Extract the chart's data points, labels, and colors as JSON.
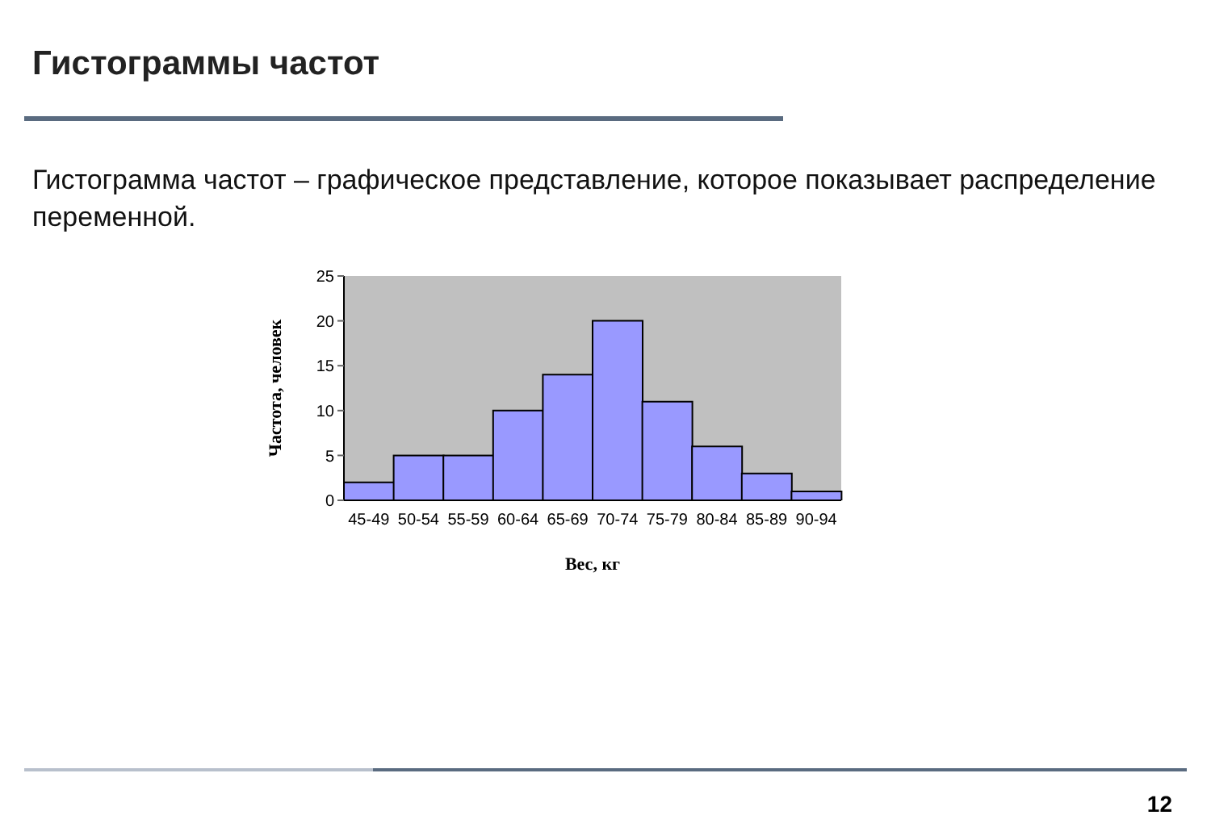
{
  "chart_data": {
    "type": "bar",
    "title": "Гистограммы частот",
    "subtitle": "Гистограмма частот – графическое представление, которое показывает распределение переменной.",
    "xlabel": "Вес, кг",
    "ylabel": "Частота, человек",
    "categories": [
      "45-49",
      "50-54",
      "55-59",
      "60-64",
      "65-69",
      "70-74",
      "75-79",
      "80-84",
      "85-89",
      "90-94"
    ],
    "values": [
      2,
      5,
      5,
      10,
      14,
      20,
      11,
      6,
      3,
      1
    ],
    "color": "#9999ff",
    "ylim": [
      0,
      25
    ],
    "yticks": [
      0,
      5,
      10,
      15,
      20,
      25
    ],
    "annotations": [
      "12"
    ]
  }
}
